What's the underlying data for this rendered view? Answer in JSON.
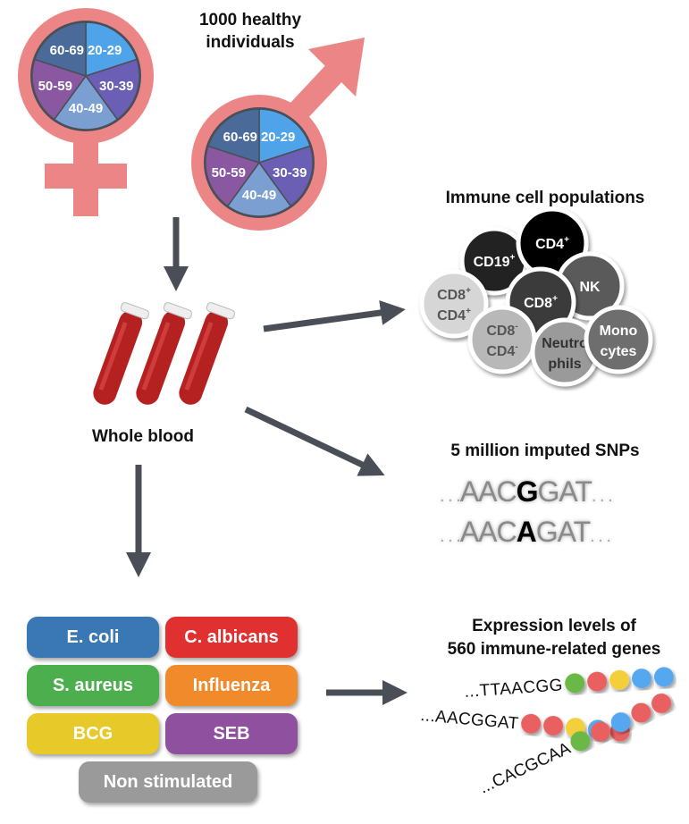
{
  "cohort": {
    "title_line1": "1000 healthy",
    "title_line2": "individuals",
    "age_groups": [
      "20-29",
      "30-39",
      "40-49",
      "50-59",
      "60-69"
    ],
    "age_colors": [
      "#4fa3e8",
      "#6a5fb5",
      "#7a9fd0",
      "#8a58a0",
      "#4a6a9a"
    ],
    "symbol_color": "#ec8585"
  },
  "blood": {
    "label": "Whole blood"
  },
  "immune": {
    "title": "Immune cell populations",
    "cells": [
      {
        "label": "CD19",
        "sup": "+",
        "color": "#222222",
        "text": "#ffffff"
      },
      {
        "label": "CD4",
        "sup": "+",
        "color": "#000000",
        "text": "#ffffff"
      },
      {
        "label": "NK",
        "sup": "",
        "color": "#5a5a5a",
        "text": "#ffffff"
      },
      {
        "label": "CD8",
        "sup": "+",
        "label2": "CD4",
        "sup2": "+",
        "color": "#d6d6d6",
        "text": "#555555"
      },
      {
        "label": "CD8",
        "sup": "+",
        "color": "#3a3a3a",
        "text": "#ffffff"
      },
      {
        "label": "CD8",
        "sup": "-",
        "label2": "CD4",
        "sup2": "-",
        "color": "#b8b8b8",
        "text": "#555555"
      },
      {
        "label": "Neutro",
        "sup": "",
        "label2": "phils",
        "sup2": "",
        "color": "#9a9a9a",
        "text": "#333333"
      },
      {
        "label": "Mono",
        "sup": "",
        "label2": "cytes",
        "sup2": "",
        "color": "#6e6e6e",
        "text": "#ffffff"
      }
    ]
  },
  "snps": {
    "title": "5 million imputed SNPs",
    "rows": [
      {
        "pre": "AAC",
        "allele": "G",
        "post": "GAT",
        "dots": ". . ."
      },
      {
        "pre": "AAC",
        "allele": "A",
        "post": "GAT",
        "dots": ". . ."
      }
    ]
  },
  "stimuli": [
    {
      "label": "E. coli",
      "color": "#3a78b5"
    },
    {
      "label": "C. albicans",
      "color": "#e03030"
    },
    {
      "label": "S. aureus",
      "color": "#4cae4c"
    },
    {
      "label": "Influenza",
      "color": "#f08a2a"
    },
    {
      "label": "BCG",
      "color": "#e8c92a"
    },
    {
      "label": "SEB",
      "color": "#9050a0"
    },
    {
      "label": "Non stimulated",
      "color": "#9a9a9a"
    }
  ],
  "expression": {
    "title_line1": "Expression levels of",
    "title_line2": "560 immune-related genes",
    "rows": [
      {
        "seq": "...TTAACGG",
        "beads": [
          "#6ab845",
          "#e86060",
          "#f2cf3a",
          "#55a8f0",
          "#55a8f0"
        ]
      },
      {
        "seq": "...AACGGAT",
        "beads": [
          "#e86060",
          "#e86060",
          "#f2cf3a",
          "#55a8f0",
          "#e86060"
        ]
      },
      {
        "seq": "...CACGCAA",
        "beads": [
          "#6ab845",
          "#e86060",
          "#55a8f0",
          "#e86060",
          "#e86060"
        ]
      }
    ]
  }
}
